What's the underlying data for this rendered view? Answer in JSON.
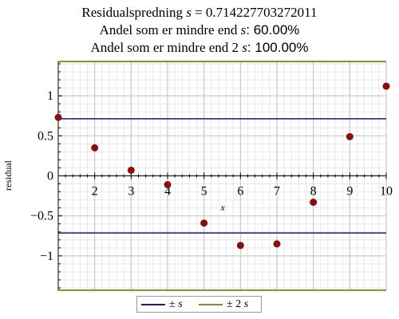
{
  "title": {
    "line1_label": "Residualspredning",
    "line1_var": "s",
    "line1_value": "= 0.714227703272011",
    "line2_text": "Andel som er mindre end",
    "line2_var": "s",
    "line2_value": ": 60.00%",
    "line3_text": "Andel som er mindre end 2",
    "line3_var": "s",
    "line3_value": ": 100.00%"
  },
  "chart_data": {
    "type": "scatter",
    "xlabel": "x",
    "ylabel": "residual",
    "xlim": [
      1,
      10
    ],
    "ylim": [
      -1.43,
      1.43
    ],
    "x_ticks": [
      2,
      3,
      4,
      5,
      6,
      7,
      8,
      9,
      10
    ],
    "y_ticks": [
      -1,
      -0.5,
      0,
      0.5,
      1
    ],
    "grid": true,
    "points": {
      "x": [
        1,
        2,
        3,
        4,
        5,
        6,
        7,
        8,
        9,
        10
      ],
      "y": [
        0.73,
        0.35,
        0.07,
        -0.11,
        -0.59,
        -0.87,
        -0.85,
        -0.33,
        0.49,
        1.12
      ]
    },
    "s": 0.714227703272011,
    "series": [
      {
        "name": "±s",
        "value": 0.714227703272011,
        "color": "#1a1a8c"
      },
      {
        "name": "±2s",
        "value": 1.428455406544022,
        "color": "#6e9a2e"
      }
    ],
    "point_color": "#8b0d0d",
    "legend_position": "bottom"
  },
  "legend": {
    "item1_prefix": "±",
    "item1_var": "s",
    "item2_prefix": "± 2",
    "item2_var": "s"
  },
  "colors": {
    "grid_major": "#c8c8c8",
    "grid_minor": "#e8e8e8",
    "axis": "#000000"
  }
}
